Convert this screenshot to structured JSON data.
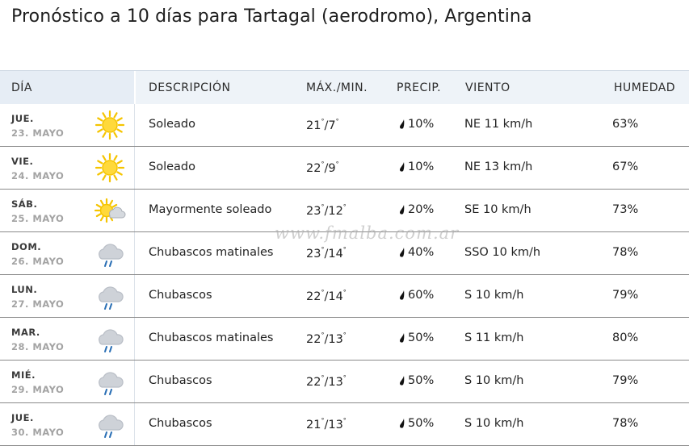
{
  "title": "Pronóstico a 10 días para Tartagal (aerodromo), Argentina",
  "watermark": "www.fmalba.com.ar",
  "headers": {
    "day": "DÍA",
    "description": "DESCRIPCIÓN",
    "maxmin": "MÁX./MIN.",
    "precip": "PRECIP.",
    "wind": "VIENTO",
    "humidity": "HUMEDAD"
  },
  "colors": {
    "sun": "#f5c400",
    "sun_core": "#ffd93b",
    "cloud": "#b9bec6",
    "rain": "#2a6fb5",
    "header_bg": "#eef3f8"
  },
  "rows": [
    {
      "day": "JUE.",
      "date": "23. MAYO",
      "icon": "sunny-icon",
      "description": "Soleado",
      "max": "21",
      "min": "7",
      "precip": "10%",
      "wind": "NE 11 km/h",
      "humidity": "63%"
    },
    {
      "day": "VIE.",
      "date": "24. MAYO",
      "icon": "sunny-icon",
      "description": "Soleado",
      "max": "22",
      "min": "9",
      "precip": "10%",
      "wind": "NE 13 km/h",
      "humidity": "67%"
    },
    {
      "day": "SÁB.",
      "date": "25. MAYO",
      "icon": "mostly-sunny-icon",
      "description": "Mayormente soleado",
      "max": "23",
      "min": "12",
      "precip": "20%",
      "wind": "SE 10 km/h",
      "humidity": "73%"
    },
    {
      "day": "DOM.",
      "date": "26. MAYO",
      "icon": "showers-icon",
      "description": "Chubascos matinales",
      "max": "23",
      "min": "14",
      "precip": "40%",
      "wind": "SSO 10 km/h",
      "humidity": "78%"
    },
    {
      "day": "LUN.",
      "date": "27. MAYO",
      "icon": "showers-icon",
      "description": "Chubascos",
      "max": "22",
      "min": "14",
      "precip": "60%",
      "wind": "S 10 km/h",
      "humidity": "79%"
    },
    {
      "day": "MAR.",
      "date": "28. MAYO",
      "icon": "showers-icon",
      "description": "Chubascos matinales",
      "max": "22",
      "min": "13",
      "precip": "50%",
      "wind": "S 11 km/h",
      "humidity": "80%"
    },
    {
      "day": "MIÉ.",
      "date": "29. MAYO",
      "icon": "showers-icon",
      "description": "Chubascos",
      "max": "22",
      "min": "13",
      "precip": "50%",
      "wind": "S 10 km/h",
      "humidity": "79%"
    },
    {
      "day": "JUE.",
      "date": "30. MAYO",
      "icon": "showers-icon",
      "description": "Chubascos",
      "max": "21",
      "min": "13",
      "precip": "50%",
      "wind": "S 10 km/h",
      "humidity": "78%"
    }
  ]
}
